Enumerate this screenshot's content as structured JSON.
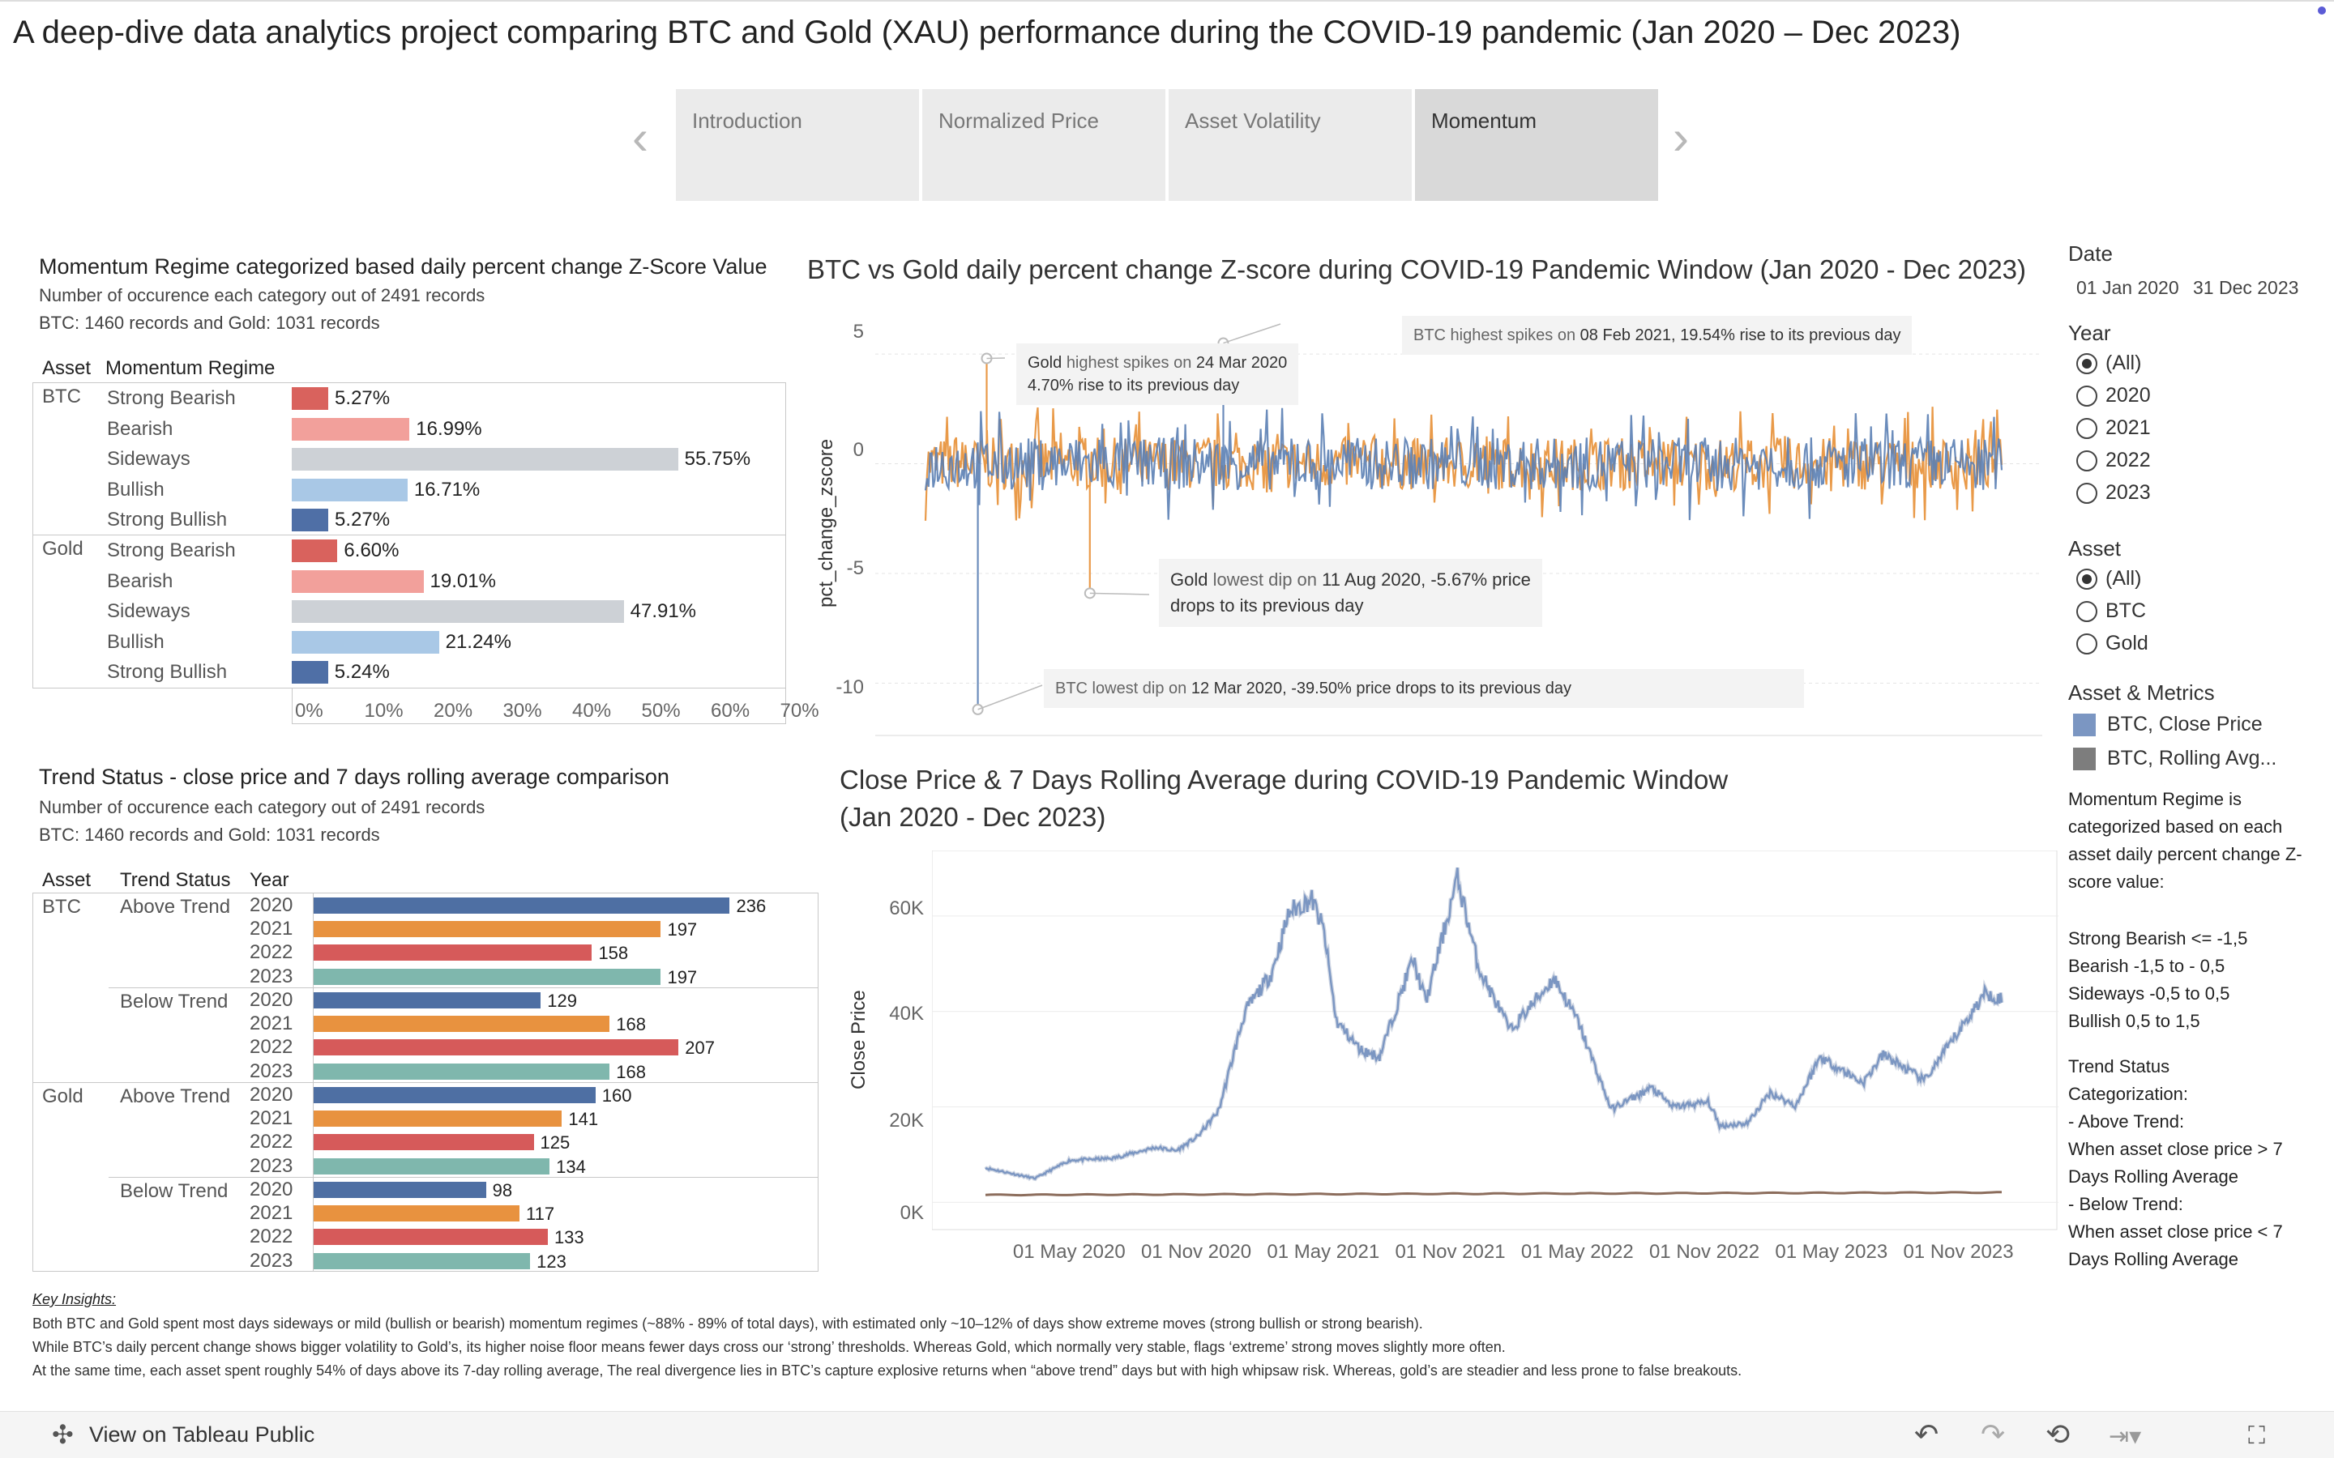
{
  "page": {
    "title": "A deep-dive data analytics project comparing BTC and Gold (XAU) performance during the COVID-19 pandemic (Jan 2020 – Dec 2023)"
  },
  "nav": {
    "prev_icon": "chevron-left-icon",
    "next_icon": "chevron-right-icon",
    "tabs": [
      "Introduction",
      "Normalized Price",
      "Asset Volatility",
      "Momentum"
    ],
    "active_tab": "Momentum"
  },
  "momentum_panel": {
    "title": "Momentum Regime  categorized based daily percent change Z-Score Value",
    "subtitle1": "Number of occurence each category out of 2491 records",
    "subtitle2": "BTC: 1460 records and Gold: 1031 records",
    "col_asset": "Asset",
    "col_regime": "Momentum Regime"
  },
  "trend_panel": {
    "title": "Trend Status  - close price and 7 days rolling average comparison",
    "subtitle1": "Number of occurence each category out of 2491 records",
    "subtitle2": "BTC: 1460 records and Gold: 1031 records",
    "col_asset": "Asset",
    "col_status": "Trend Status",
    "col_year": "Year"
  },
  "zscore_chart": {
    "title": "BTC vs Gold daily percent change Z-score during COVID-19 Pandemic Window (Jan 2020 - Dec 2023)",
    "ylabel": "pct_change_zscore",
    "y_ticks": [
      "5",
      "0",
      "-5",
      "-10"
    ],
    "annotations": {
      "btc_high": {
        "k": "BTC highest spikes on",
        "v": "08 Feb 2021, 19.54% rise to its previous day"
      },
      "gold_high": {
        "k1": "Gold",
        "k2": "highest spikes on",
        "v1": "24 Mar 2020",
        "v2": "4.70% rise to its previous day"
      },
      "gold_low": {
        "k1": "Gold",
        "k2": "lowest dip on",
        "v1": "11 Aug 2020, -5.67% price",
        "v2": "drops to its previous day"
      },
      "btc_low": {
        "k": "BTC lowest dip on",
        "v": "12 Mar 2020, -39.50% price drops to its previous day"
      }
    }
  },
  "price_chart": {
    "title1": "Close Price & 7 Days Rolling Average during COVID-19 Pandemic Window",
    "title2": "(Jan 2020 - Dec 2023)",
    "ylabel": "Close Price",
    "y_ticks": [
      "60K",
      "40K",
      "20K",
      "0K"
    ],
    "x_ticks": [
      "01 May 2020",
      "01 Nov 2020",
      "01 May 2021",
      "01 Nov 2021",
      "01 May 2022",
      "01 Nov 2022",
      "01 May 2023",
      "01 Nov 2023"
    ]
  },
  "filters": {
    "date_label": "Date",
    "date_start": "01 Jan 2020",
    "date_end": "31 Dec 2023",
    "year_label": "Year",
    "year_options": [
      "(All)",
      "2020",
      "2021",
      "2022",
      "2023"
    ],
    "year_selected": "(All)",
    "asset_label": "Asset",
    "asset_options": [
      "(All)",
      "BTC",
      "Gold"
    ],
    "asset_selected": "(All)",
    "legend_label": "Asset & Metrics",
    "legend_items": [
      {
        "label": "BTC, Close Price",
        "color": "#7b96c2"
      },
      {
        "label": "BTC, Rolling Avg...",
        "color": "#7d7d7d"
      }
    ],
    "note_regime": "Momentum Regime is categorized based on each asset daily percent change Z-score value:",
    "note_regime_list": "Strong Bearish <= -1,5\nBearish  -1,5 to - 0,5\nSideways -0,5 to 0,5\nBullish 0,5 to 1,5",
    "note_trend": "Trend Status\nCategorization:\n- Above Trend:\n  When asset close price > 7\n  Days Rolling Average\n- Below Trend:\n  When asset close price < 7\n  Days Rolling Average"
  },
  "insights": {
    "title": "Key Insights:",
    "lines": [
      "Both BTC and Gold spent most days sideways or mild (bullish or bearish) momentum regimes (~88% - 89% of total days), with estimated only ~10–12% of days show extreme moves (strong bullish or strong bearish).",
      "While BTC’s daily percent change shows bigger volatility to Gold’s, its higher noise floor means fewer days cross our ‘strong’ thresholds. Whereas Gold, which normally very stable, flags ‘extreme’ strong moves slightly more often.",
      "At the same time, each asset spent roughly 54% of days above its 7-day rolling average, The real divergence lies in BTC’s capture explosive returns when “above trend” days but with high whipsaw risk. Whereas, gold’s are steadier and less prone to false breakouts."
    ]
  },
  "footer": {
    "link": "View on Tableau Public",
    "icons": [
      "tableau-logo-icon",
      "undo-icon",
      "redo-icon",
      "revert-icon",
      "share-icon",
      "fullscreen-icon"
    ]
  },
  "chart_data": [
    {
      "type": "bar",
      "title": "Momentum Regime  categorized based daily percent change Z-Score Value",
      "orientation": "horizontal",
      "x_ticks": [
        "0%",
        "10%",
        "20%",
        "30%",
        "40%",
        "50%",
        "60%",
        "70%"
      ],
      "xlim": [
        0,
        70
      ],
      "colors": {
        "Strong Bearish": "#d9625d",
        "Bearish": "#f2a09b",
        "Sideways": "#cdd1d6",
        "Bullish": "#a9c8e6",
        "Strong Bullish": "#4f6fa6"
      },
      "series": [
        {
          "name": "BTC",
          "categories": [
            "Strong Bearish",
            "Bearish",
            "Sideways",
            "Bullish",
            "Strong Bullish"
          ],
          "values": [
            5.27,
            16.99,
            55.75,
            16.71,
            5.27
          ],
          "labels": [
            "5.27%",
            "16.99%",
            "55.75%",
            "16.71%",
            "5.27%"
          ]
        },
        {
          "name": "Gold",
          "categories": [
            "Strong Bearish",
            "Bearish",
            "Sideways",
            "Bullish",
            "Strong Bullish"
          ],
          "values": [
            6.6,
            19.01,
            47.91,
            21.24,
            5.24
          ],
          "labels": [
            "6.60%",
            "19.01%",
            "47.91%",
            "21.24%",
            "5.24%"
          ]
        }
      ]
    },
    {
      "type": "bar",
      "title": "Trend Status  - close price and 7 days rolling average comparison",
      "orientation": "horizontal",
      "year_colors": {
        "2020": "#4e6fa3",
        "2021": "#e8923f",
        "2022": "#d65a5a",
        "2023": "#7fb7ad"
      },
      "groups": [
        {
          "asset": "BTC",
          "status": "Above Trend",
          "years": [
            "2020",
            "2021",
            "2022",
            "2023"
          ],
          "values": [
            236,
            197,
            158,
            197
          ]
        },
        {
          "asset": "BTC",
          "status": "Below Trend",
          "years": [
            "2020",
            "2021",
            "2022",
            "2023"
          ],
          "values": [
            129,
            168,
            207,
            168
          ]
        },
        {
          "asset": "Gold",
          "status": "Above Trend",
          "years": [
            "2020",
            "2021",
            "2022",
            "2023"
          ],
          "values": [
            160,
            141,
            125,
            134
          ]
        },
        {
          "asset": "Gold",
          "status": "Below Trend",
          "years": [
            "2020",
            "2021",
            "2022",
            "2023"
          ],
          "values": [
            98,
            117,
            133,
            123
          ]
        }
      ]
    },
    {
      "type": "line",
      "title": "BTC vs Gold daily percent change Z-score during COVID-19 Pandemic Window (Jan 2020 - Dec 2023)",
      "ylabel": "pct_change_zscore",
      "ylim": [
        -11.5,
        6
      ],
      "x_range": [
        "2020-01-01",
        "2023-12-31"
      ],
      "series": [
        {
          "name": "BTC",
          "color": "#5b7fb4",
          "noise_amplitude": 1,
          "spikes": [
            {
              "date": "2020-03-12",
              "value": -11.2
            },
            {
              "date": "2021-02-08",
              "value": 5.5
            }
          ]
        },
        {
          "name": "Gold",
          "color": "#e8953f",
          "noise_amplitude": 1,
          "spikes": [
            {
              "date": "2020-03-24",
              "value": 4.8
            },
            {
              "date": "2020-08-11",
              "value": -5.9
            }
          ]
        }
      ]
    },
    {
      "type": "line",
      "title": "Close Price & 7 Days Rolling Average during COVID-19 Pandemic Window (Jan 2020 - Dec 2023)",
      "ylabel": "Close Price",
      "ylim": [
        -3000,
        70000
      ],
      "series": [
        {
          "name": "BTC, Close Price",
          "color": "#7b96c2",
          "x": [
            "2020-01-01",
            "2020-03-12",
            "2020-05-01",
            "2020-07-01",
            "2020-09-01",
            "2020-10-01",
            "2020-11-01",
            "2020-12-01",
            "2021-01-08",
            "2021-02-15",
            "2021-03-13",
            "2021-04-14",
            "2021-05-01",
            "2021-05-19",
            "2021-06-22",
            "2021-07-20",
            "2021-09-06",
            "2021-09-25",
            "2021-11-09",
            "2021-12-10",
            "2022-01-24",
            "2022-03-28",
            "2022-05-01",
            "2022-06-18",
            "2022-08-15",
            "2022-09-15",
            "2022-11-05",
            "2022-11-21",
            "2022-12-31",
            "2023-02-01",
            "2023-03-10",
            "2023-04-14",
            "2023-06-15",
            "2023-07-14",
            "2023-09-11",
            "2023-10-24",
            "2023-12-08",
            "2023-12-31"
          ],
          "values": [
            7200,
            5000,
            8800,
            9200,
            11500,
            10800,
            13800,
            19200,
            40000,
            48000,
            61000,
            63500,
            57000,
            38000,
            32000,
            30500,
            51000,
            42000,
            68000,
            49000,
            36000,
            47000,
            38000,
            19500,
            24000,
            20000,
            21000,
            16000,
            16600,
            23000,
            20200,
            30500,
            25000,
            31000,
            25500,
            34500,
            44000,
            42500
          ]
        },
        {
          "name": "Gold, Close Price",
          "color": "#8c6d5c",
          "x": [
            "2020-01-01",
            "2023-12-31"
          ],
          "values": [
            1550,
            2060
          ]
        }
      ],
      "x_ticks": [
        "01 May 2020",
        "01 Nov 2020",
        "01 May 2021",
        "01 Nov 2021",
        "01 May 2022",
        "01 Nov 2022",
        "01 May 2023",
        "01 Nov 2023"
      ]
    }
  ]
}
